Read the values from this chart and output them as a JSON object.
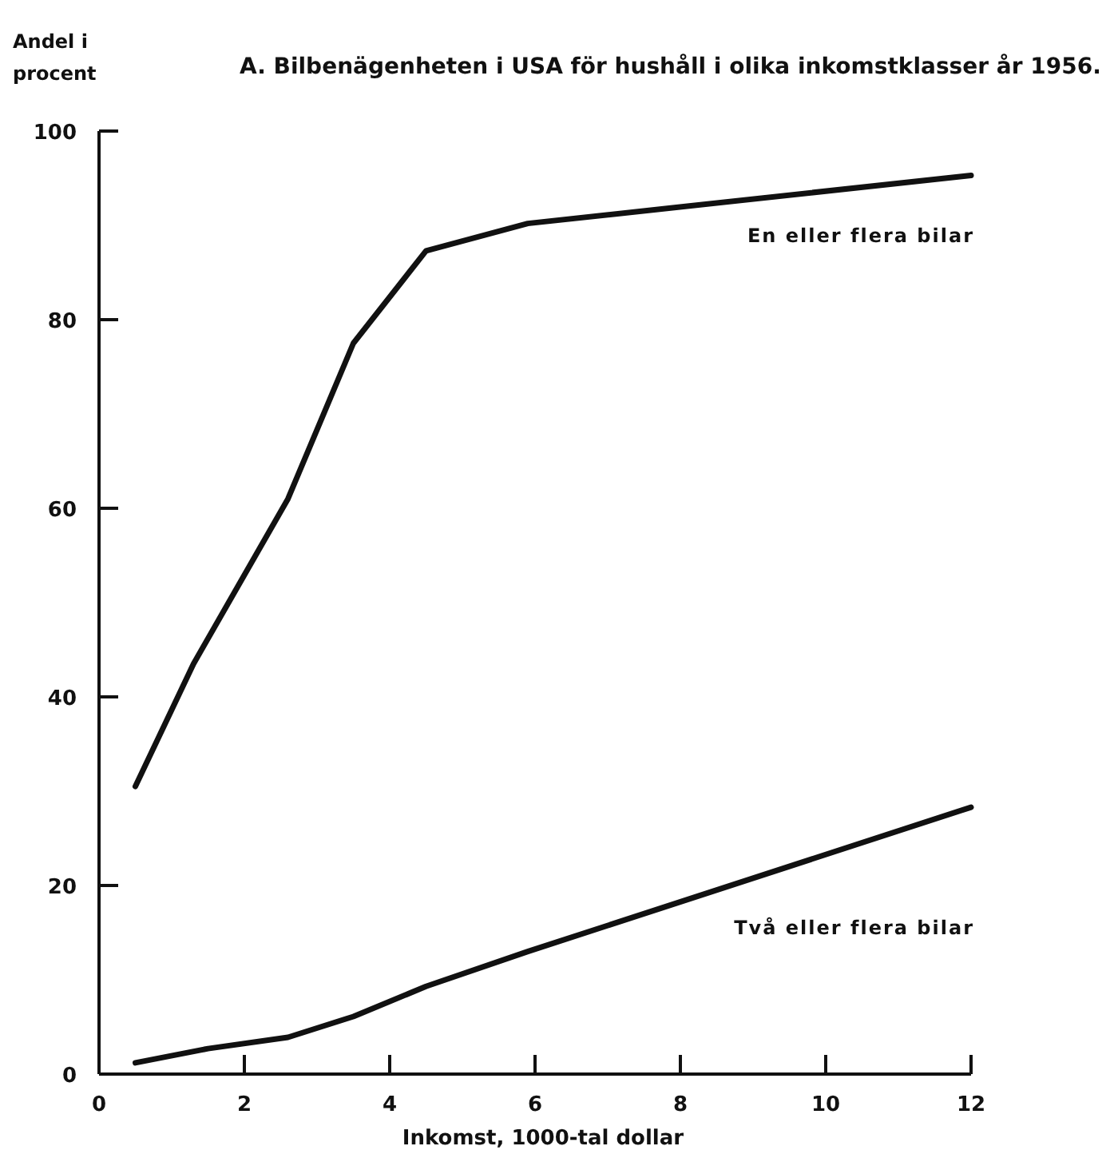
{
  "chart_data": {
    "type": "line",
    "title": "A. Bilbenägenheten i USA för hushåll i olika inkomstklasser år 1956.",
    "xlabel": "Inkomst, 1000-tal dollar",
    "ylabel": "Andel i procent",
    "xlim": [
      0,
      12
    ],
    "xticks": [
      0,
      2,
      4,
      6,
      8,
      10,
      12
    ],
    "ylim": [
      0,
      100
    ],
    "yticks": [
      0,
      20,
      40,
      60,
      80,
      100
    ],
    "grid": false,
    "marker": "none",
    "line_style": "solid",
    "series": [
      {
        "name": "En eller flera bilar",
        "color": "#111111",
        "x": [
          0.5,
          1.3,
          2.6,
          3.5,
          4.5,
          5.9,
          12
        ],
        "values": [
          30.5,
          43.5,
          61,
          77.5,
          87.3,
          90.2,
          95.3
        ]
      },
      {
        "name": "Två eller flera bilar",
        "color": "#111111",
        "x": [
          0.5,
          1.5,
          2.6,
          3.5,
          4.5,
          5.9,
          12
        ],
        "values": [
          1.2,
          2.7,
          3.9,
          6.1,
          9.3,
          13,
          28.3
        ]
      }
    ]
  }
}
